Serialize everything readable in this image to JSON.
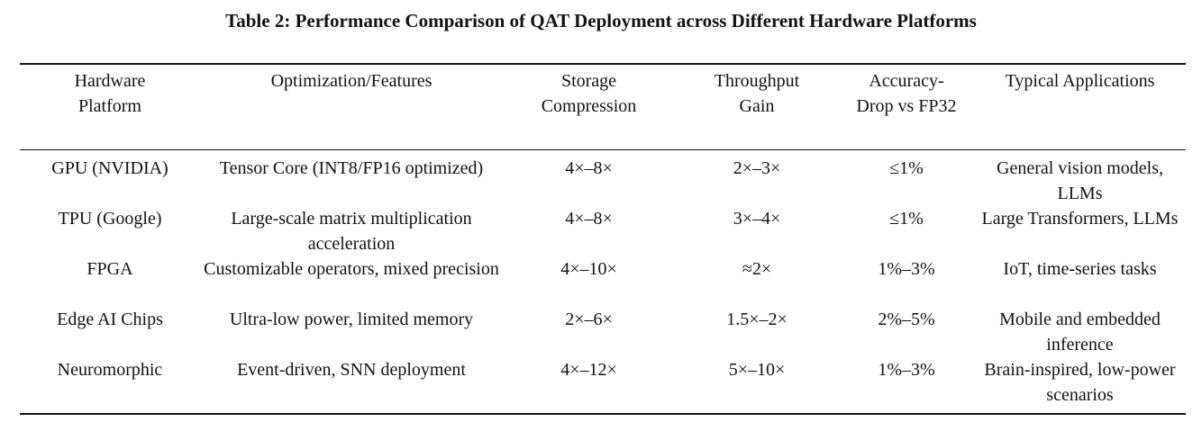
{
  "caption": "Table 2: Performance Comparison of QAT Deployment across Different Hardware Platforms",
  "columns": [
    "Hardware Platform",
    "Optimization/Features",
    "Storage Compression",
    "Throughput Gain",
    "Accuracy-Drop vs FP32",
    "Typical Applications"
  ],
  "rows": [
    {
      "platform": "GPU (NVIDIA)",
      "features": "Tensor Core (INT8/FP16 optimized)",
      "compression": "4×–8×",
      "throughput": "2×–3×",
      "accuracy_drop": "≤1%",
      "applications": "General vision models, LLMs"
    },
    {
      "platform": "TPU (Google)",
      "features": "Large-scale matrix multiplication acceleration",
      "compression": "4×–8×",
      "throughput": "3×–4×",
      "accuracy_drop": "≤1%",
      "applications": "Large Transformers, LLMs"
    },
    {
      "platform": "FPGA",
      "features": "Customizable operators, mixed precision",
      "compression": "4×–10×",
      "throughput": "≈2×",
      "accuracy_drop": "1%–3%",
      "applications": "IoT, time-series tasks"
    },
    {
      "platform": "Edge AI Chips",
      "features": "Ultra-low power, limited memory",
      "compression": "2×–6×",
      "throughput": "1.5×–2×",
      "accuracy_drop": "2%–5%",
      "applications": "Mobile and embedded inference"
    },
    {
      "platform": "Neuromorphic",
      "features": "Event-driven, SNN deployment",
      "compression": "4×–12×",
      "throughput": "5×–10×",
      "accuracy_drop": "1%–3%",
      "applications": "Brain-inspired, low-power scenarios"
    }
  ]
}
